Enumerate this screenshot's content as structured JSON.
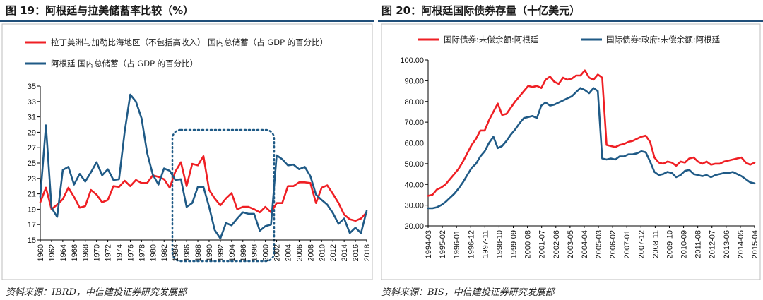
{
  "colors": {
    "red": "#ef1f24",
    "blue": "#1f5a86",
    "rule": "#1f4e79",
    "frame": "#bdbdbd"
  },
  "chart_data": [
    {
      "type": "line",
      "title": "图 19：阿根廷与拉美储蓄率比较（%）",
      "source": "资料来源：IBRD，中信建投证券研究发展部",
      "x": [
        1960,
        1961,
        1962,
        1963,
        1964,
        1965,
        1966,
        1967,
        1968,
        1969,
        1970,
        1971,
        1972,
        1973,
        1974,
        1975,
        1976,
        1977,
        1978,
        1979,
        1980,
        1981,
        1982,
        1983,
        1984,
        1985,
        1986,
        1987,
        1988,
        1989,
        1990,
        1991,
        1992,
        1993,
        1994,
        1995,
        1996,
        1997,
        1998,
        1999,
        2000,
        2001,
        2002,
        2003,
        2004,
        2005,
        2006,
        2007,
        2008,
        2009,
        2010,
        2011,
        2012,
        2013,
        2014,
        2015,
        2016,
        2017,
        2018
      ],
      "x_ticks": [
        "1960",
        "1962",
        "1964",
        "1966",
        "1968",
        "1970",
        "1972",
        "1974",
        "1976",
        "1978",
        "1980",
        "1982",
        "1984",
        "1986",
        "1988",
        "1990",
        "1992",
        "1994",
        "1996",
        "1998",
        "2000",
        "2002",
        "2004",
        "2006",
        "2008",
        "2010",
        "2012",
        "2014",
        "2016",
        "2018"
      ],
      "ylim": [
        15,
        35
      ],
      "y_ticks": [
        15,
        17,
        19,
        21,
        23,
        25,
        27,
        29,
        31,
        33,
        35
      ],
      "grid": false,
      "legend_placement": "top",
      "series": [
        {
          "name": "拉丁美洲与加勒比海地区（不包括高收入） 国内总储蓄（占 GDP 的百分比）",
          "color": "red",
          "values": [
            19.9,
            21.8,
            19.0,
            19.6,
            20.3,
            21.8,
            20.6,
            19.2,
            19.4,
            21.5,
            20.9,
            19.9,
            20.2,
            22.0,
            21.9,
            22.7,
            22.0,
            22.8,
            22.4,
            22.4,
            23.4,
            23.2,
            22.9,
            21.8,
            23.9,
            25.1,
            22.0,
            24.9,
            24.7,
            25.9,
            21.5,
            20.4,
            19.5,
            20.4,
            21.1,
            19.0,
            19.3,
            19.3,
            19.0,
            18.6,
            19.3,
            18.6,
            19.8,
            19.8,
            22.0,
            22.0,
            22.5,
            22.5,
            22.4,
            19.8,
            21.8,
            22.1,
            21.0,
            19.8,
            18.3,
            17.7,
            17.5,
            17.8,
            18.6
          ]
        },
        {
          "name": "阿根廷 国内总储蓄（占 GDP 的百分比）",
          "color": "blue",
          "values": [
            20.6,
            29.9,
            19.2,
            18.0,
            24.1,
            24.5,
            22.2,
            23.6,
            22.6,
            23.8,
            25.1,
            23.4,
            24.2,
            22.8,
            22.9,
            29.1,
            33.9,
            33.0,
            30.8,
            26.3,
            23.5,
            22.2,
            24.3,
            24.0,
            22.8,
            22.9,
            19.3,
            19.8,
            21.9,
            21.9,
            19.3,
            16.3,
            15.2,
            17.2,
            16.9,
            17.8,
            18.6,
            18.4,
            18.4,
            16.2,
            16.8,
            17.0,
            26.0,
            25.5,
            24.7,
            24.8,
            24.2,
            24.5,
            23.3,
            20.9,
            20.2,
            19.6,
            18.5,
            17.1,
            17.8,
            15.9,
            16.6,
            15.9,
            18.8
          ]
        }
      ]
    },
    {
      "type": "line",
      "title": "图 20：阿根廷国际债券存量（十亿美元）",
      "source": "资料来源：BIS，中信建投证券研究发展部",
      "x_ticks": [
        "1994-03",
        "1995-02",
        "1996-01",
        "1996-12",
        "1997-11",
        "1998-10",
        "1999-09",
        "2000-08",
        "2001-07",
        "2002-06",
        "2003-05",
        "2004-04",
        "2005-03",
        "2006-02",
        "2007-01",
        "2007-12",
        "2008-11",
        "2009-10",
        "2010-09",
        "2011-08",
        "2012-07",
        "2013-06",
        "2014-05",
        "2015-04"
      ],
      "ylim": [
        20,
        100
      ],
      "y_ticks": [
        "20.00",
        "30.00",
        "40.00",
        "50.00",
        "60.00",
        "70.00",
        "80.00",
        "90.00",
        "100.00"
      ],
      "grid": false,
      "legend_placement": "top",
      "series": [
        {
          "name": "国际债券:未偿余额:阿根廷",
          "color": "red",
          "values": [
            34.5,
            35.0,
            37.5,
            38.5,
            40.0,
            42.5,
            45.0,
            47.5,
            51.0,
            55.0,
            59.0,
            62.0,
            66.0,
            66.0,
            71.0,
            75.0,
            79.0,
            73.5,
            74.0,
            77.0,
            80.0,
            82.5,
            85.0,
            87.5,
            87.0,
            87.5,
            86.5,
            90.5,
            92.0,
            89.5,
            88.5,
            91.5,
            90.5,
            91.0,
            92.5,
            92.5,
            95.0,
            91.5,
            90.5,
            93.0,
            91.5,
            59.0,
            58.5,
            58.0,
            59.0,
            59.5,
            60.5,
            61.0,
            62.0,
            63.0,
            63.5,
            60.5,
            53.0,
            50.5,
            50.0,
            51.0,
            50.5,
            49.0,
            51.0,
            50.5,
            52.5,
            53.0,
            51.0,
            50.0,
            51.0,
            49.5,
            50.0,
            50.0,
            51.0,
            51.5,
            52.0,
            52.5,
            53.0,
            50.5,
            49.5,
            50.5
          ]
        },
        {
          "name": "国际债券:政府:未偿余额:阿根廷",
          "color": "blue",
          "values": [
            28.5,
            28.5,
            29.0,
            30.0,
            31.5,
            33.5,
            35.5,
            38.0,
            41.0,
            44.5,
            48.0,
            50.0,
            53.5,
            56.0,
            60.0,
            63.0,
            57.5,
            58.5,
            61.0,
            64.0,
            66.5,
            69.5,
            72.0,
            72.5,
            73.0,
            72.0,
            78.0,
            79.5,
            78.0,
            78.5,
            79.5,
            80.5,
            81.5,
            82.5,
            84.5,
            86.5,
            85.5,
            84.0,
            86.5,
            85.0,
            52.5,
            52.0,
            52.5,
            52.0,
            53.5,
            53.5,
            54.5,
            54.5,
            55.0,
            56.0,
            55.5,
            51.0,
            46.0,
            44.5,
            45.0,
            46.0,
            45.5,
            43.5,
            44.5,
            46.5,
            47.0,
            45.0,
            44.5,
            44.0,
            44.5,
            43.5,
            44.5,
            45.0,
            45.5,
            45.5,
            46.0,
            45.0,
            44.0,
            42.5,
            41.0,
            40.5
          ]
        }
      ]
    }
  ]
}
